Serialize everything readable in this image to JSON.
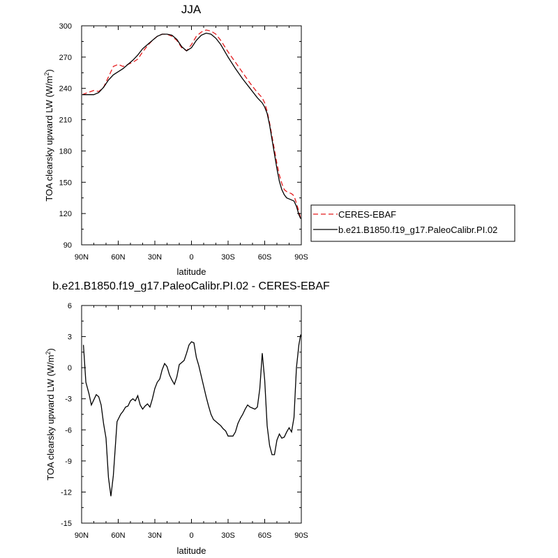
{
  "chart_data": [
    {
      "type": "line",
      "title": "JJA",
      "xlabel": "latitude",
      "ylabel": "TOA clearsky upward LW (W/m",
      "ylabel_sup": "2",
      "ylabel_tail": ")",
      "xlim": [
        90,
        -90
      ],
      "ylim": [
        90,
        300
      ],
      "x_ticks": [
        {
          "value": 90,
          "label": "90N"
        },
        {
          "value": 60,
          "label": "60N"
        },
        {
          "value": 30,
          "label": "30N"
        },
        {
          "value": 0,
          "label": "0"
        },
        {
          "value": -30,
          "label": "30S"
        },
        {
          "value": -60,
          "label": "60S"
        },
        {
          "value": -90,
          "label": "90S"
        }
      ],
      "y_ticks": [
        90,
        120,
        150,
        180,
        210,
        240,
        270,
        300
      ],
      "legend_position": "right-bottom",
      "series": [
        {
          "name": "CERES-EBAF",
          "color": "#e41a1c",
          "dash": "dashed",
          "x": [
            89.5,
            85,
            80,
            76,
            72,
            68,
            64,
            60,
            56,
            52,
            48,
            44,
            40,
            36,
            32,
            28,
            24,
            20,
            16,
            12,
            8,
            4,
            0,
            -4,
            -8,
            -12,
            -16,
            -20,
            -24,
            -30,
            -36,
            -42,
            -48,
            -54,
            -58,
            -60,
            -62,
            -64,
            -66,
            -68,
            -70,
            -72,
            -74,
            -76,
            -78,
            -80,
            -82,
            -84,
            -86,
            -88,
            -89.5
          ],
          "y": [
            234,
            236,
            238,
            237,
            241,
            251,
            261,
            263,
            261,
            263,
            265,
            268,
            275,
            281,
            286,
            290,
            292,
            292,
            290,
            286,
            279,
            276,
            282,
            290,
            294,
            296,
            295,
            292,
            286,
            275,
            265,
            255,
            245,
            236,
            231,
            226,
            218,
            207,
            194,
            181,
            168,
            157,
            149,
            143,
            141,
            140,
            139,
            137,
            130,
            122,
            115
          ]
        },
        {
          "name": "b.e21.B1850.f19_g17.PaleoCalibr.PI.02",
          "color": "#000000",
          "dash": "solid",
          "x": [
            89.5,
            85,
            80,
            76,
            72,
            68,
            64,
            60,
            56,
            52,
            48,
            44,
            40,
            36,
            32,
            28,
            24,
            20,
            16,
            12,
            8,
            4,
            0,
            -4,
            -8,
            -12,
            -16,
            -20,
            -24,
            -30,
            -36,
            -42,
            -48,
            -54,
            -58,
            -60,
            -62,
            -64,
            -66,
            -68,
            -70,
            -72,
            -74,
            -76,
            -78,
            -80,
            -82,
            -84,
            -86,
            -88,
            -89.5
          ],
          "y": [
            234,
            234,
            234,
            236,
            241,
            248,
            253,
            256,
            259,
            263,
            267,
            272,
            278,
            282,
            286,
            290,
            292,
            292,
            291,
            287,
            280,
            276,
            279,
            286,
            291,
            293,
            292,
            288,
            282,
            270,
            259,
            249,
            240,
            231,
            226,
            222,
            216,
            205,
            191,
            177,
            163,
            151,
            143,
            138,
            135,
            134,
            133,
            132,
            127,
            119,
            115
          ]
        }
      ]
    },
    {
      "type": "line",
      "title": "b.e21.B1850.f19_g17.PaleoCalibr.PI.02 - CERES-EBAF",
      "xlabel": "latitude",
      "ylabel": "TOA clearsky upward LW (W/m",
      "ylabel_sup": "2",
      "ylabel_tail": ")",
      "xlim": [
        90,
        -90
      ],
      "ylim": [
        -15,
        6
      ],
      "x_ticks": [
        {
          "value": 90,
          "label": "90N"
        },
        {
          "value": 60,
          "label": "60N"
        },
        {
          "value": 30,
          "label": "30N"
        },
        {
          "value": 0,
          "label": "0"
        },
        {
          "value": -30,
          "label": "30S"
        },
        {
          "value": -60,
          "label": "60S"
        },
        {
          "value": -90,
          "label": "90S"
        }
      ],
      "y_ticks": [
        -15,
        -12,
        -9,
        -6,
        -3,
        0,
        3,
        6
      ],
      "series": [
        {
          "color": "#000000",
          "dash": "solid",
          "x": [
            88.5,
            86.5,
            84,
            82,
            80,
            78,
            76,
            74,
            72,
            70,
            68,
            66,
            64,
            61,
            58,
            56,
            54,
            52,
            50,
            48,
            46,
            44,
            42,
            40,
            38,
            36,
            34,
            32,
            30,
            28,
            26,
            24,
            22,
            20,
            18,
            16,
            14,
            12,
            10,
            8,
            6,
            4,
            2,
            0,
            -2,
            -4,
            -6,
            -8,
            -10,
            -12,
            -14,
            -16,
            -18,
            -20,
            -22,
            -24,
            -26,
            -28,
            -30,
            -32,
            -34,
            -36,
            -38,
            -40,
            -42,
            -44,
            -46,
            -48,
            -50,
            -52,
            -54,
            -56,
            -58,
            -60,
            -62,
            -64,
            -66,
            -68,
            -70,
            -72,
            -74,
            -76,
            -78,
            -80,
            -82,
            -84,
            -86,
            -88,
            -89.5
          ],
          "y": [
            2.2,
            -1.4,
            -2.5,
            -3.6,
            -3.1,
            -2.6,
            -2.8,
            -3.6,
            -5.4,
            -6.8,
            -10.6,
            -12.4,
            -10.4,
            -5.2,
            -4.5,
            -4.2,
            -3.8,
            -3.7,
            -3.2,
            -3.0,
            -3.2,
            -2.7,
            -3.6,
            -4.0,
            -3.7,
            -3.5,
            -3.8,
            -3.0,
            -2.0,
            -1.4,
            -1.1,
            -0.2,
            0.4,
            0.1,
            -0.7,
            -1.2,
            -1.6,
            -0.9,
            0.3,
            0.5,
            0.7,
            1.4,
            2.2,
            2.5,
            2.4,
            1.0,
            0.2,
            -0.8,
            -1.8,
            -2.8,
            -3.7,
            -4.5,
            -5.0,
            -5.2,
            -5.4,
            -5.6,
            -5.9,
            -6.1,
            -6.6,
            -6.6,
            -6.6,
            -6.2,
            -5.4,
            -4.9,
            -4.5,
            -4.0,
            -3.6,
            -3.8,
            -3.9,
            -4.0,
            -3.8,
            -2.0,
            1.4,
            -1.2,
            -5.6,
            -7.5,
            -8.4,
            -8.4,
            -7.0,
            -6.4,
            -6.8,
            -6.7,
            -6.2,
            -5.8,
            -6.2,
            -4.8,
            0.0,
            2.2,
            3.2
          ]
        }
      ]
    }
  ],
  "legend": [
    {
      "label": "CERES-EBAF",
      "color": "#e41a1c",
      "dash": "dashed"
    },
    {
      "label": "b.e21.B1850.f19_g17.PaleoCalibr.PI.02",
      "color": "#000000",
      "dash": "solid"
    }
  ]
}
